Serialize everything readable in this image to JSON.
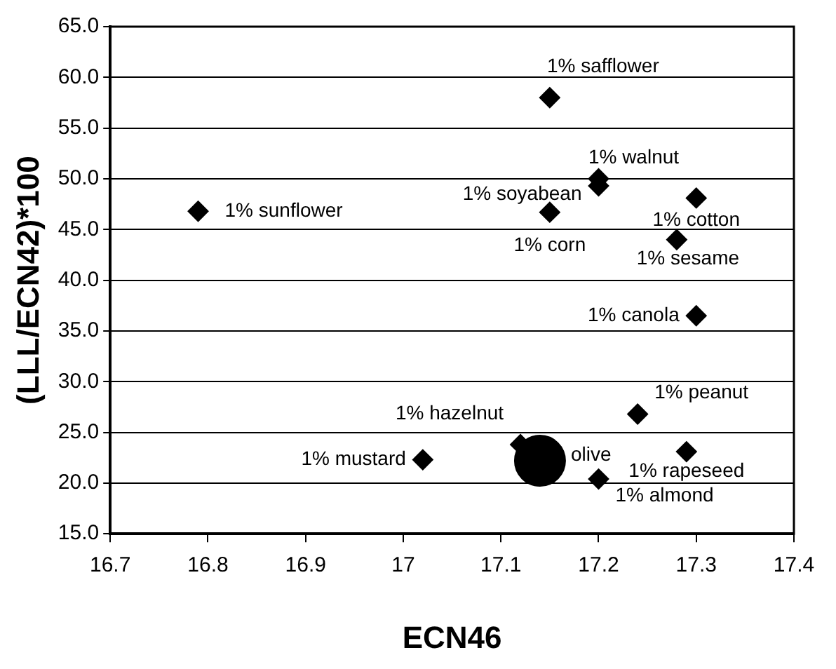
{
  "chart_data": {
    "type": "scatter",
    "xlabel": "ECN46",
    "ylabel": "(LLL/ECN42)*100",
    "xlim": [
      16.7,
      17.4
    ],
    "xticks": [
      16.7,
      16.8,
      16.9,
      17,
      17.1,
      17.2,
      17.3,
      17.4
    ],
    "ylim": [
      15,
      65
    ],
    "yticks": [
      {
        "value": 15,
        "label": "15.0"
      },
      {
        "value": 20,
        "label": "20.0"
      },
      {
        "value": 25,
        "label": "25.0"
      },
      {
        "value": 30,
        "label": "30.0"
      },
      {
        "value": 35,
        "label": "35.0"
      },
      {
        "value": 40,
        "label": "40.0"
      },
      {
        "value": 45,
        "label": "45.0"
      },
      {
        "value": 50,
        "label": "50.0"
      },
      {
        "value": 55,
        "label": "55.0"
      },
      {
        "value": 60,
        "label": "60.0"
      },
      {
        "value": 65,
        "label": "65.0"
      }
    ],
    "grid": "y",
    "legend": false,
    "marker": "diamond",
    "series": [
      {
        "name": "1% sunflower",
        "color": "#000000",
        "x": [
          16.79
        ],
        "values": [
          46.8
        ]
      },
      {
        "name": "1% safflower",
        "color": "#000000",
        "x": [
          17.15
        ],
        "values": [
          58
        ]
      },
      {
        "name": "1% walnut",
        "color": "#000000",
        "x": [
          17.2
        ],
        "values": [
          50
        ]
      },
      {
        "name": "1% soyabean",
        "color": "#000000",
        "x": [
          17.2
        ],
        "values": [
          49.3
        ]
      },
      {
        "name": "1% cotton",
        "color": "#000000",
        "x": [
          17.3
        ],
        "values": [
          48.1
        ]
      },
      {
        "name": "1% corn",
        "color": "#000000",
        "x": [
          17.15
        ],
        "values": [
          46.7
        ]
      },
      {
        "name": "1% sesame",
        "color": "#000000",
        "x": [
          17.28
        ],
        "values": [
          44
        ]
      },
      {
        "name": "1% canola",
        "color": "#000000",
        "x": [
          17.3
        ],
        "values": [
          36.5
        ]
      },
      {
        "name": "1% peanut",
        "color": "#000000",
        "x": [
          17.24
        ],
        "values": [
          26.8
        ]
      },
      {
        "name": "1% hazelnut",
        "color": "#000000",
        "x": [
          17.12
        ],
        "values": [
          23.8
        ]
      },
      {
        "name": "olive",
        "color": "#000000",
        "x": [
          17.14
        ],
        "values": [
          22.2
        ],
        "marker": "circle"
      },
      {
        "name": "1% mustard",
        "color": "#000000",
        "x": [
          17.02
        ],
        "values": [
          22.3
        ]
      },
      {
        "name": "1% rapeseed",
        "color": "#000000",
        "x": [
          17.29
        ],
        "values": [
          23.1
        ]
      },
      {
        "name": "1% almond",
        "color": "#000000",
        "x": [
          17.2
        ],
        "values": [
          20.4
        ]
      }
    ]
  }
}
